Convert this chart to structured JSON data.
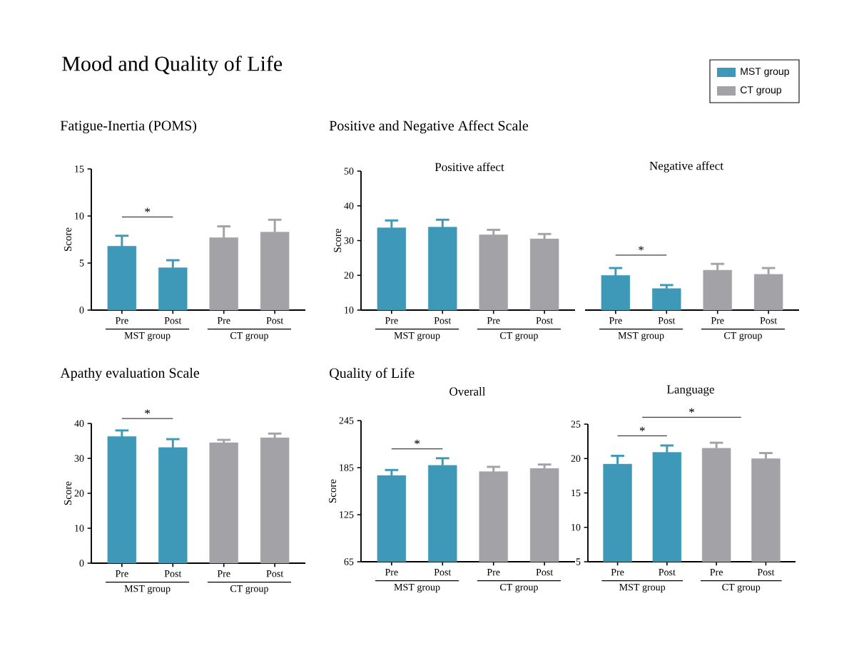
{
  "chart_data": [
    {
      "type": "other",
      "title": "Mood and Quality of Life"
    },
    {
      "type": "bar",
      "title": "Fatigue-Inertia (POMS)",
      "ylabel": "Score",
      "categories": [
        "Pre",
        "Post",
        "Pre",
        "Post"
      ],
      "series": [
        {
          "name": "MST group",
          "color": "#3e98b8",
          "values": [
            6.8,
            4.5,
            null,
            null
          ],
          "errors": [
            1.1,
            0.8,
            null,
            null
          ]
        },
        {
          "name": "CT group",
          "color": "#a3a2a7",
          "values": [
            null,
            null,
            7.7,
            8.3
          ],
          "errors": [
            null,
            null,
            1.2,
            1.3
          ]
        }
      ],
      "ylim": [
        0,
        15
      ],
      "yticks": [
        0,
        5,
        10,
        15
      ],
      "legend": "top right",
      "annotations": [
        "*",
        "MST group",
        "CT group"
      ]
    },
    {
      "type": "bar",
      "title": "Positive and Negative Affect Scale",
      "subtitle": "Positive affect",
      "ylabel": "Score",
      "categories": [
        "Pre",
        "Post",
        "Pre",
        "Post"
      ],
      "series": [
        {
          "color": "#3e98b8",
          "values": [
            33.7,
            33.9,
            null,
            null
          ],
          "errors": [
            2.1,
            2.1,
            null,
            null
          ]
        },
        {
          "color": "#a3a2a7",
          "values": [
            null,
            null,
            31.7,
            30.5
          ],
          "errors": [
            null,
            null,
            1.4,
            1.4
          ]
        }
      ],
      "ylim": [
        10,
        50
      ],
      "yticks": [
        10,
        20,
        30,
        40,
        50
      ],
      "annotations": [
        "MST group",
        "CT group"
      ]
    },
    {
      "type": "bar",
      "subtitle": "Negative affect",
      "categories": [
        "Pre",
        "Post",
        "Pre",
        "Post"
      ],
      "series": [
        {
          "color": "#3e98b8",
          "values": [
            20.0,
            16.2,
            null,
            null
          ],
          "errors": [
            2.1,
            1.0,
            null,
            null
          ]
        },
        {
          "color": "#a3a2a7",
          "values": [
            null,
            null,
            21.5,
            20.3
          ],
          "errors": [
            null,
            null,
            1.8,
            1.8
          ]
        }
      ],
      "ylim": [
        10,
        50
      ],
      "tick_labels": "x",
      "annotations": [
        "*",
        "MST group",
        "CT group"
      ]
    },
    {
      "type": "bar",
      "title": "Apathy evaluation Scale",
      "ylabel": "Score",
      "categories": [
        "Pre",
        "Post",
        "Pre",
        "Post"
      ],
      "series": [
        {
          "color": "#3e98b8",
          "values": [
            36.3,
            33.1,
            null,
            null
          ],
          "errors": [
            1.7,
            2.4,
            null,
            null
          ]
        },
        {
          "color": "#a3a2a7",
          "values": [
            null,
            null,
            34.5,
            35.9
          ],
          "errors": [
            null,
            null,
            0.8,
            1.2
          ]
        }
      ],
      "ylim": [
        0,
        40
      ],
      "yticks": [
        0,
        10,
        20,
        30,
        40
      ],
      "annotations": [
        "*",
        "MST group",
        "CT group"
      ]
    },
    {
      "type": "bar",
      "title": "Quality of Life",
      "subtitle": "Overall",
      "ylabel": "Score",
      "categories": [
        "Pre",
        "Post",
        "Pre",
        "Post"
      ],
      "series": [
        {
          "color": "#3e98b8",
          "values": [
            175,
            188,
            null,
            null
          ],
          "errors": [
            7,
            9,
            null,
            null
          ]
        },
        {
          "color": "#a3a2a7",
          "values": [
            null,
            null,
            180,
            184
          ],
          "errors": [
            null,
            null,
            6,
            5
          ]
        }
      ],
      "ylim": [
        65,
        245
      ],
      "yticks": [
        65,
        125,
        185,
        245
      ],
      "annotations": [
        "*",
        "MST group",
        "CT group"
      ]
    },
    {
      "type": "bar",
      "subtitle": "Language",
      "categories": [
        "Pre",
        "Post",
        "Pre",
        "Post"
      ],
      "series": [
        {
          "color": "#3e98b8",
          "values": [
            19.2,
            20.9,
            null,
            null
          ],
          "errors": [
            1.2,
            1.0,
            null,
            null
          ]
        },
        {
          "color": "#a3a2a7",
          "values": [
            null,
            null,
            21.5,
            20.0
          ],
          "errors": [
            null,
            null,
            0.8,
            0.8
          ]
        }
      ],
      "ylim": [
        5,
        25
      ],
      "yticks": [
        5,
        10,
        15,
        20,
        25
      ],
      "annotations": [
        "*",
        "*",
        "MST group",
        "CT group"
      ]
    }
  ]
}
